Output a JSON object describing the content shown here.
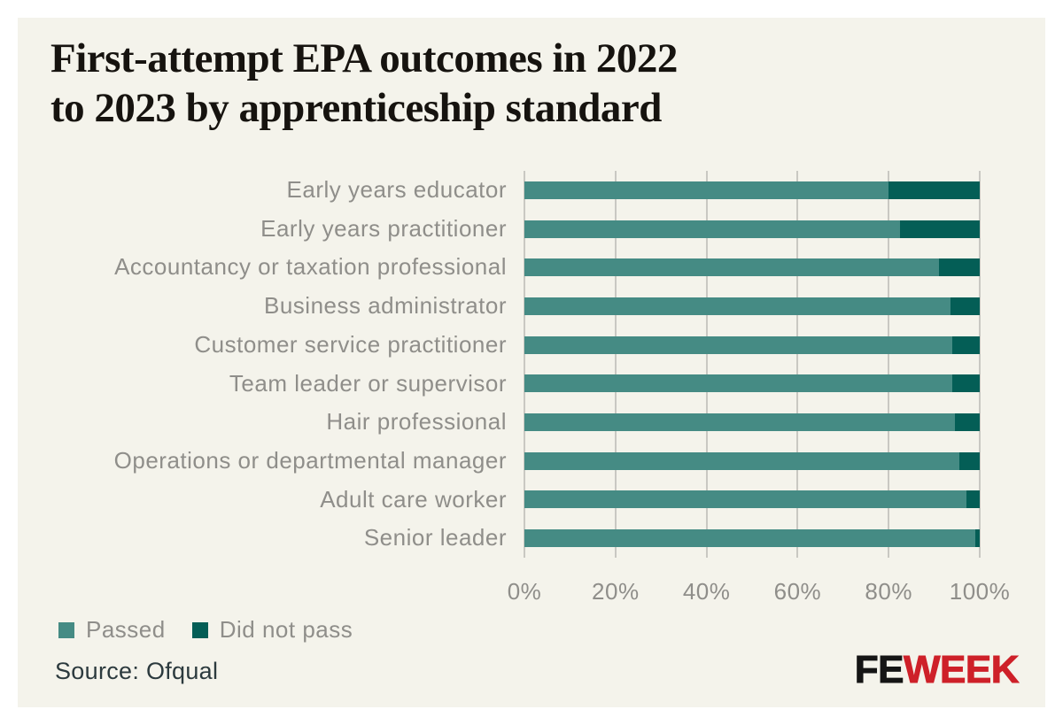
{
  "header": {
    "title_lines": [
      "First-attempt EPA outcomes in 2022",
      "to 2023 by apprenticeship standard"
    ]
  },
  "chart_data": {
    "type": "bar",
    "orientation": "horizontal",
    "stacked": true,
    "title": "First-attempt EPA outcomes in 2022 to 2023 by apprenticeship standard",
    "categories": [
      "Early years educator",
      "Early years practitioner",
      "Accountancy or taxation professional",
      "Business administrator",
      "Customer service practitioner",
      "Team leader or supervisor",
      "Hair professional",
      "Operations or departmental manager",
      "Adult care worker",
      "Senior leader"
    ],
    "series": [
      {
        "name": "Passed",
        "color": "#458B84",
        "values": [
          80,
          82.5,
          91,
          93.5,
          94,
          94,
          94.5,
          95.5,
          97,
          99
        ]
      },
      {
        "name": "Did not pass",
        "color": "#045E56",
        "values": [
          20,
          17.5,
          9,
          6.5,
          6,
          6,
          5.5,
          4.5,
          3,
          1
        ]
      }
    ],
    "x_ticks": [
      "0%",
      "20%",
      "40%",
      "60%",
      "80%",
      "100%"
    ],
    "xlim": [
      0,
      100
    ],
    "grid": "vertical gridlines every 20%",
    "legend_position": "bottom-left"
  },
  "legend": {
    "items": [
      {
        "label": "Passed",
        "color": "#458B84"
      },
      {
        "label": "Did not pass",
        "color": "#045E56"
      }
    ]
  },
  "source": {
    "label": "Source: Ofqual"
  },
  "logo": {
    "fe": "FE",
    "week": "WEEK"
  },
  "colors": {
    "page_bg": "#FFFFFF",
    "card_bg": "#F4F3EB",
    "gridline": "#C9C8C2",
    "label_gray": "#8F8E8A",
    "title_text": "#16130F",
    "source_text": "#2C3A3E",
    "passed": "#458B84",
    "did_not_pass": "#045E56",
    "logo_fe": "#151515",
    "logo_week": "#CE2029"
  }
}
